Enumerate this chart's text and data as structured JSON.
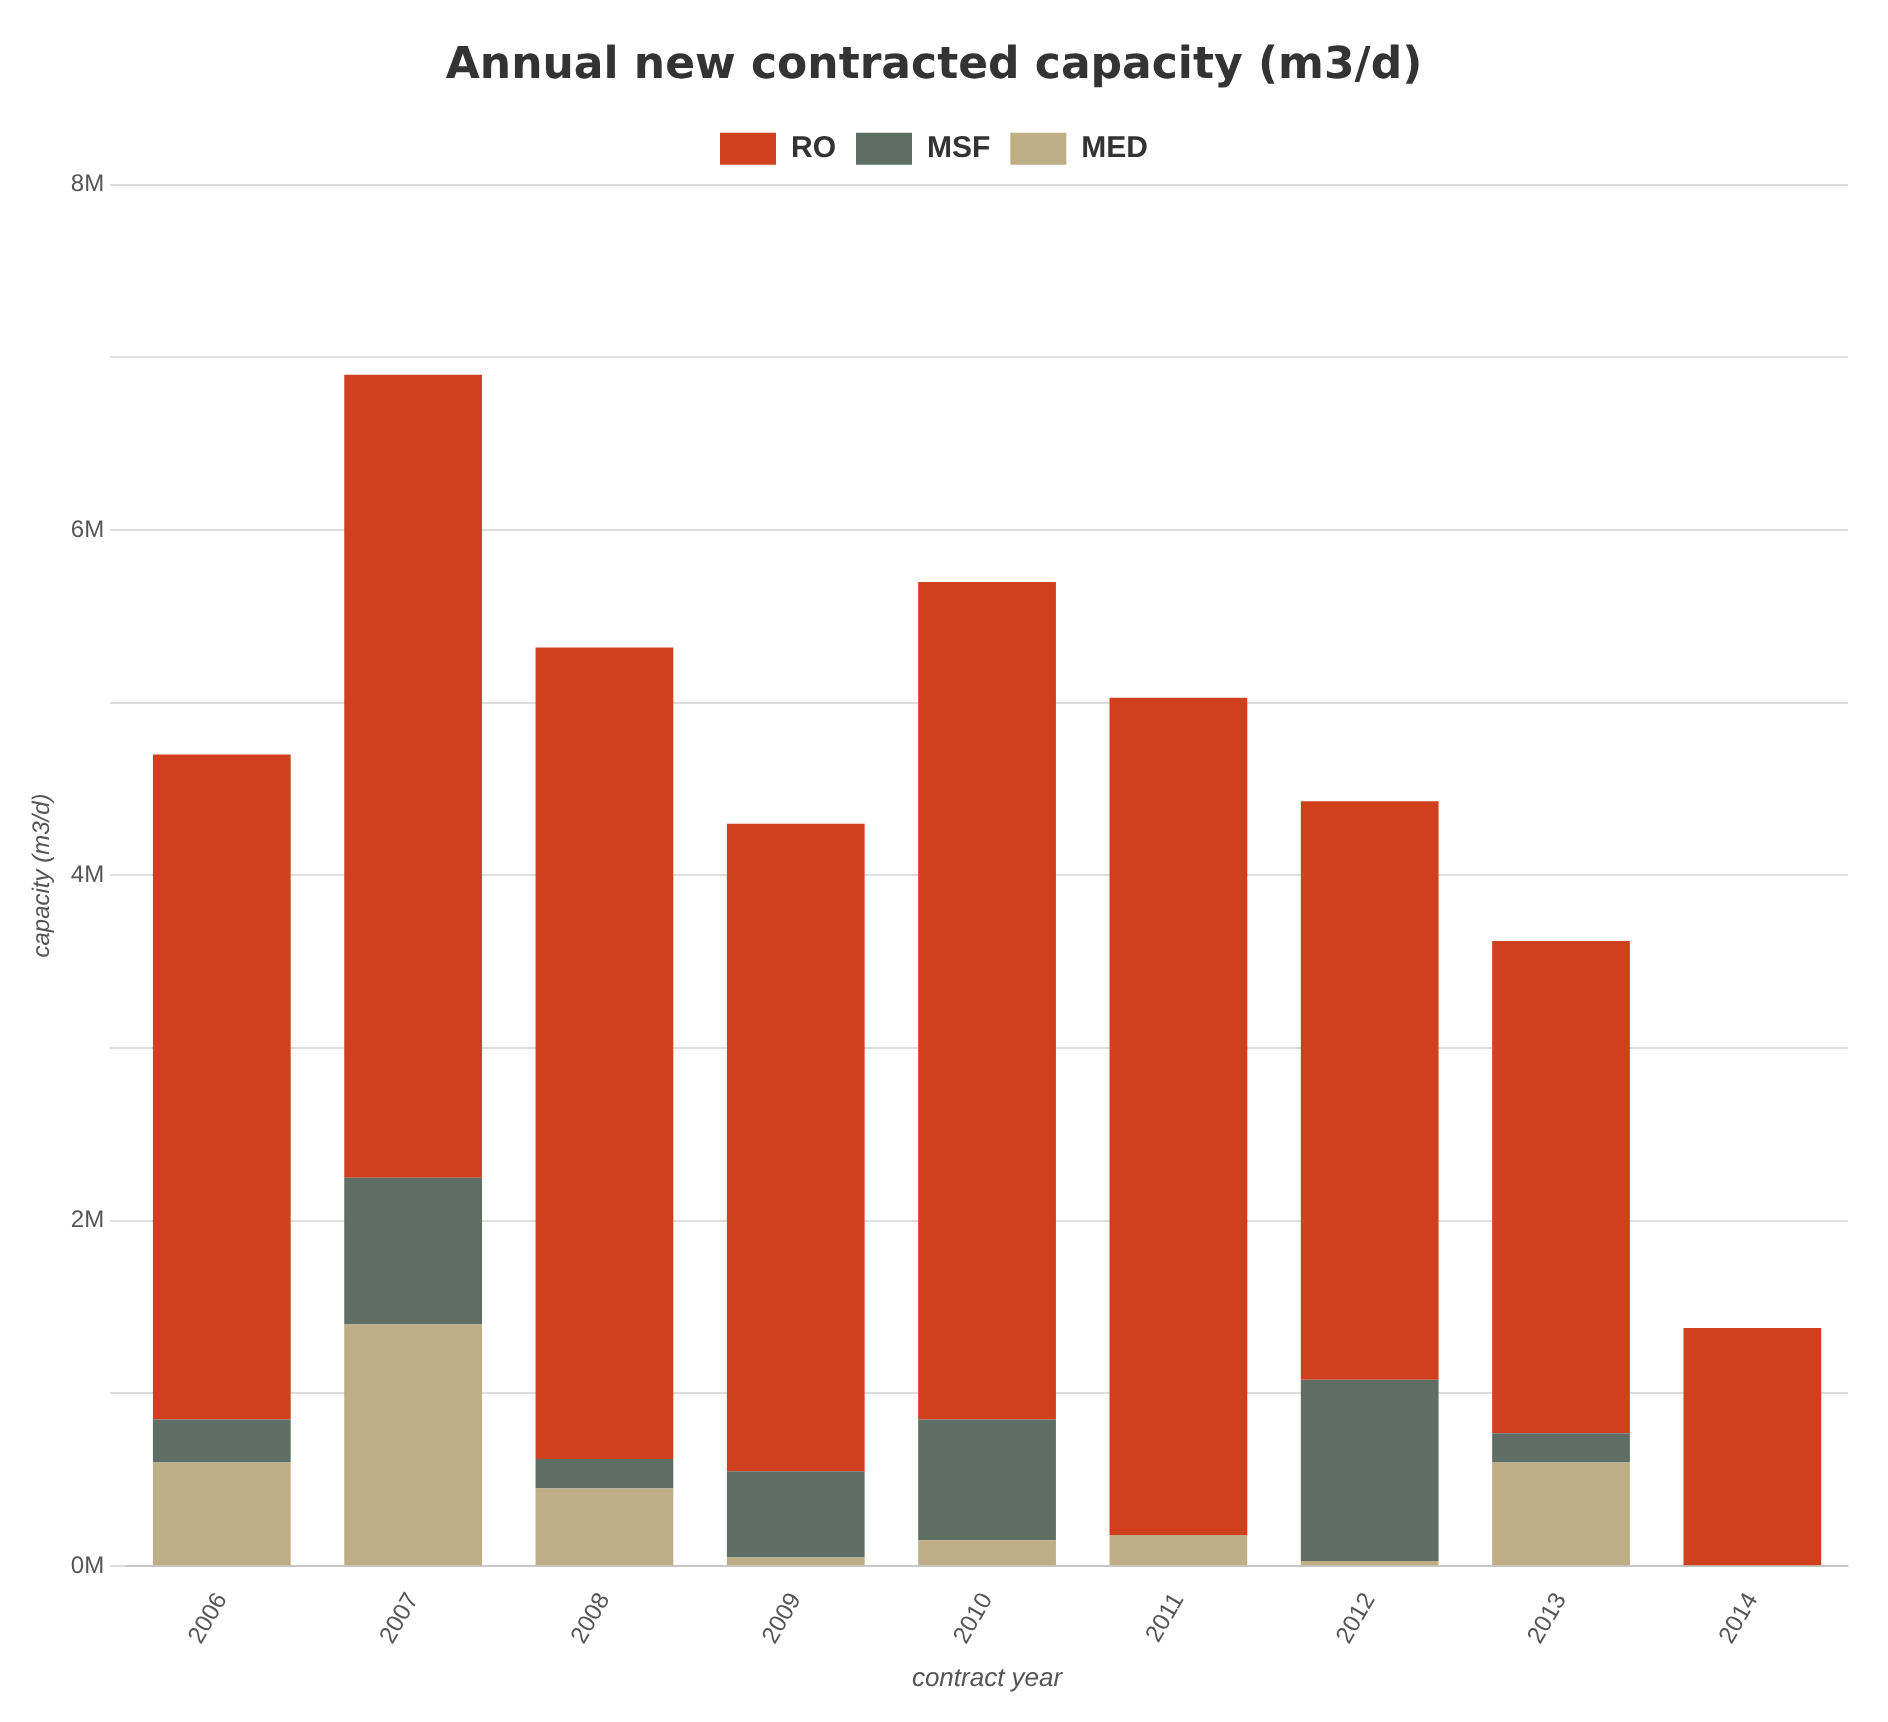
{
  "chart_data": {
    "type": "bar",
    "title": "Annual new contracted capacity (m3/d)",
    "xlabel": "contract year",
    "ylabel": "capacity (m3/d)",
    "categories": [
      "2006",
      "2007",
      "2008",
      "2009",
      "2010",
      "2011",
      "2012",
      "2013",
      "2014"
    ],
    "stacked": true,
    "series": [
      {
        "name": "MED",
        "color": "#bfae85",
        "values": [
          0.6,
          1.4,
          0.45,
          0.05,
          0.15,
          0.18,
          0.03,
          0.6,
          0
        ]
      },
      {
        "name": "MSF",
        "color": "#5f6e64",
        "values": [
          0.25,
          0.85,
          0.17,
          0.5,
          0.7,
          0,
          1.05,
          0.17,
          0
        ]
      },
      {
        "name": "RO",
        "color": "#d0401f",
        "values": [
          3.85,
          4.65,
          4.7,
          3.75,
          4.85,
          4.85,
          3.35,
          2.85,
          1.38
        ]
      }
    ],
    "ylim": [
      0,
      8
    ],
    "yticks": [
      {
        "value": 0,
        "label": "0M"
      },
      {
        "value": 1,
        "label": null
      },
      {
        "value": 2,
        "label": "2M"
      },
      {
        "value": 3,
        "label": null
      },
      {
        "value": 4,
        "label": "4M"
      },
      {
        "value": 5,
        "label": null
      },
      {
        "value": 6,
        "label": "6M"
      },
      {
        "value": 7,
        "label": null
      },
      {
        "value": 8,
        "label": "8M"
      }
    ],
    "grid": "y",
    "legend": "top"
  }
}
